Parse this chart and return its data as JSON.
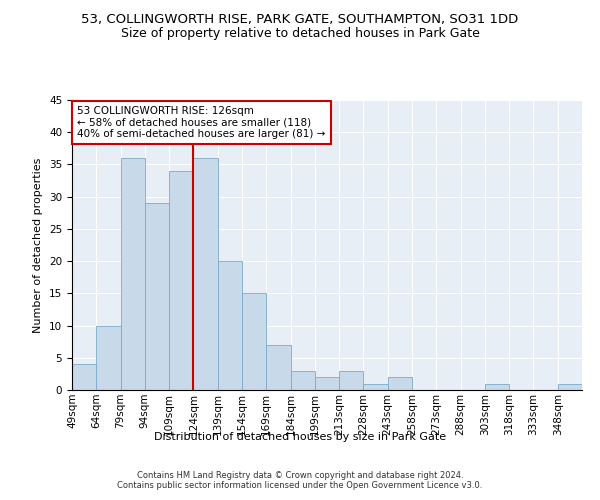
{
  "title1": "53, COLLINGWORTH RISE, PARK GATE, SOUTHAMPTON, SO31 1DD",
  "title2": "Size of property relative to detached houses in Park Gate",
  "xlabel": "Distribution of detached houses by size in Park Gate",
  "ylabel": "Number of detached properties",
  "bar_values": [
    4,
    10,
    36,
    29,
    34,
    36,
    20,
    15,
    7,
    3,
    2,
    3,
    1,
    2,
    0,
    0,
    0,
    1,
    0,
    0,
    1
  ],
  "x_labels": [
    "49sqm",
    "64sqm",
    "79sqm",
    "94sqm",
    "109sqm",
    "124sqm",
    "139sqm",
    "154sqm",
    "169sqm",
    "184sqm",
    "199sqm",
    "213sqm",
    "228sqm",
    "243sqm",
    "258sqm",
    "273sqm",
    "288sqm",
    "303sqm",
    "318sqm",
    "333sqm",
    "348sqm"
  ],
  "bar_color": "#c8d9ea",
  "bar_edge_color": "#7aaac8",
  "property_line_x": 5,
  "property_line_label": "53 COLLINGWORTH RISE: 126sqm",
  "annotation_line1": "← 58% of detached houses are smaller (118)",
  "annotation_line2": "40% of semi-detached houses are larger (81) →",
  "annotation_box_color": "#ffffff",
  "annotation_box_edge_color": "#cc0000",
  "vline_color": "#cc0000",
  "ylim": [
    0,
    45
  ],
  "yticks": [
    0,
    5,
    10,
    15,
    20,
    25,
    30,
    35,
    40,
    45
  ],
  "bg_color": "#e8eef6",
  "footer": "Contains HM Land Registry data © Crown copyright and database right 2024.\nContains public sector information licensed under the Open Government Licence v3.0.",
  "title1_fontsize": 9.5,
  "title2_fontsize": 9,
  "annotation_fontsize": 7.5,
  "axis_label_fontsize": 8,
  "tick_fontsize": 7.5,
  "footer_fontsize": 6
}
